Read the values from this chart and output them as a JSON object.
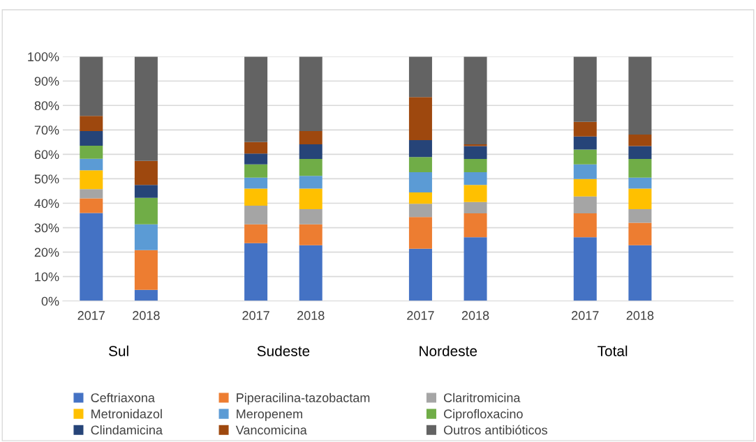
{
  "chart_data": {
    "type": "bar",
    "stacked": true,
    "categories": [
      "2017",
      "2018",
      null,
      "2017",
      "2018",
      null,
      "2017",
      "2018",
      null,
      "2017",
      "2018"
    ],
    "annotations": [
      "Sul",
      "Sudeste",
      "Nordeste",
      "Total"
    ],
    "ylim": [
      0,
      100
    ],
    "yticks": [
      {
        "value": 0,
        "label": "0%"
      },
      {
        "value": 10,
        "label": "10%"
      },
      {
        "value": 20,
        "label": "20%"
      },
      {
        "value": 30,
        "label": "30%"
      },
      {
        "value": 40,
        "label": "40%"
      },
      {
        "value": 50,
        "label": "50%"
      },
      {
        "value": 60,
        "label": "60%"
      },
      {
        "value": 70,
        "label": "70%"
      },
      {
        "value": 80,
        "label": "80%"
      },
      {
        "value": 90,
        "label": "90%"
      },
      {
        "value": 100,
        "label": "100%"
      }
    ],
    "grid": "y",
    "legend": "bottom",
    "series": [
      {
        "name": "Ceftriaxona",
        "color": "#4472c4",
        "values": [
          36.0,
          4.6,
          null,
          23.7,
          22.8,
          null,
          21.4,
          26.1,
          null,
          26.1,
          22.8
        ]
      },
      {
        "name": "Piperacilina-tazobactam",
        "color": "#ed7d31",
        "values": [
          6.0,
          16.2,
          null,
          7.7,
          8.6,
          null,
          13.0,
          9.8,
          null,
          9.8,
          9.2
        ]
      },
      {
        "name": "Claritromicina",
        "color": "#a5a5a5",
        "values": [
          3.8,
          0,
          null,
          7.6,
          6.2,
          null,
          5.4,
          4.6,
          null,
          6.9,
          5.6
        ]
      },
      {
        "name": "Metronidazol",
        "color": "#ffc000",
        "values": [
          7.7,
          0,
          null,
          7.0,
          8.4,
          null,
          4.6,
          7.0,
          null,
          7.1,
          8.4
        ]
      },
      {
        "name": "Meropenem",
        "color": "#5b9bd5",
        "values": [
          4.7,
          10.6,
          null,
          4.5,
          5.2,
          null,
          8.3,
          5.2,
          null,
          6.0,
          4.5
        ]
      },
      {
        "name": "Ciprofloxacino",
        "color": "#70ad47",
        "values": [
          5.3,
          10.8,
          null,
          5.4,
          6.9,
          null,
          6.2,
          5.4,
          null,
          6.1,
          7.6
        ]
      },
      {
        "name": "Clindamicina",
        "color": "#264478",
        "values": [
          6.0,
          5.3,
          null,
          4.4,
          6.0,
          null,
          6.9,
          5.3,
          null,
          5.3,
          5.3
        ]
      },
      {
        "name": "Vancomicina",
        "color": "#9e480e",
        "values": [
          6.2,
          9.8,
          null,
          4.7,
          5.4,
          null,
          17.6,
          0.7,
          null,
          6.0,
          4.7
        ]
      },
      {
        "name": "Outros antibióticos",
        "color": "#636363",
        "values": [
          24.3,
          42.7,
          null,
          35.0,
          30.5,
          null,
          16.6,
          35.9,
          null,
          26.7,
          31.9
        ]
      }
    ]
  }
}
